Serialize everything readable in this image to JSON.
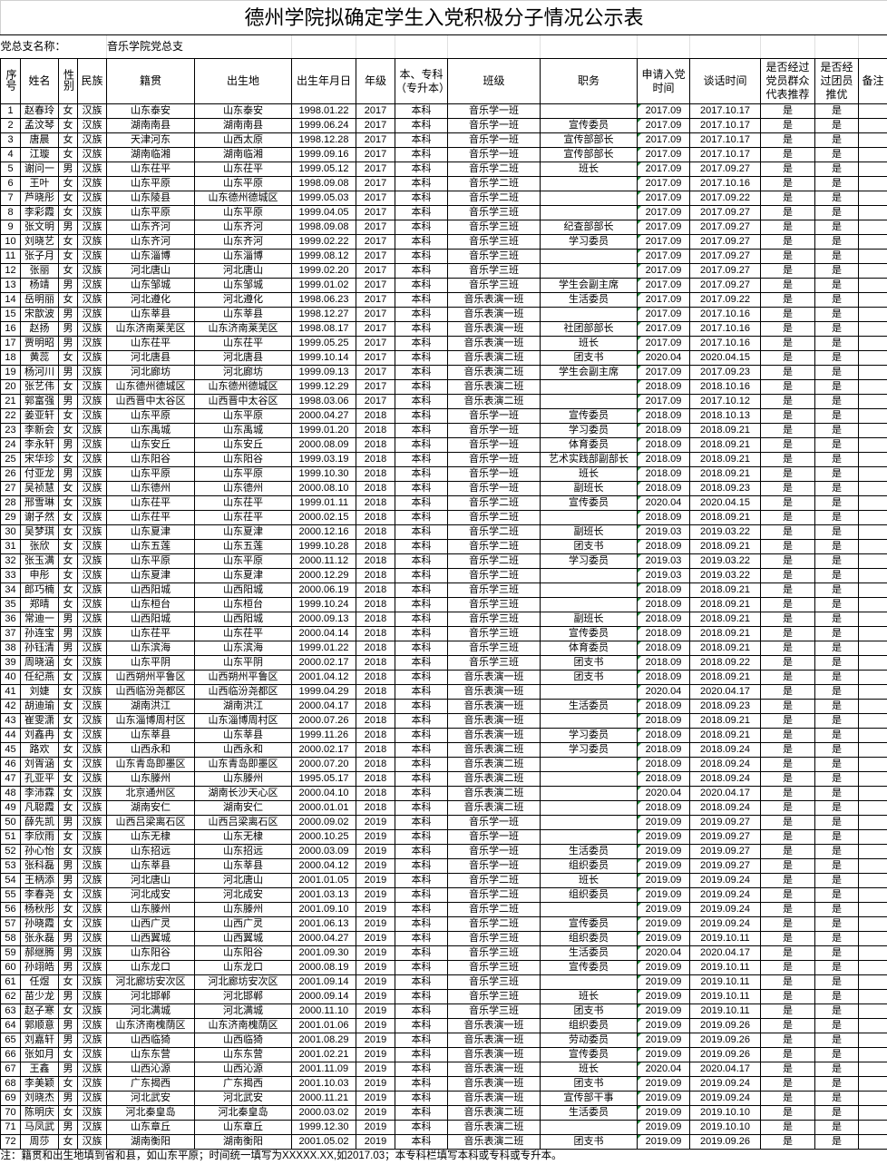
{
  "title": "德州学院拟确定学生入党积极分子情况公示表",
  "branch": {
    "label": "党总支名称：",
    "value": "音乐学院党总支"
  },
  "headers": [
    "序号",
    "姓名",
    "性别",
    "民族",
    "籍贯",
    "出生地",
    "出生年月日",
    "年级",
    "本、专科（专升本）",
    "班级",
    "职务",
    "申请入党时间",
    "谈话时间",
    "是否经过党员群众代表推荐",
    "是否经过团员推优",
    "备注"
  ],
  "rows": [
    [
      "1",
      "赵春玲",
      "女",
      "汉族",
      "山东泰安",
      "山东泰安",
      "1998.01.22",
      "2017",
      "本科",
      "音乐学一班",
      "",
      "2017.09",
      "2017.10.17",
      "是",
      "是",
      ""
    ],
    [
      "2",
      "孟汶琴",
      "女",
      "汉族",
      "湖南南县",
      "湖南南县",
      "1999.06.24",
      "2017",
      "本科",
      "音乐学一班",
      "宣传委员",
      "2017.09",
      "2017.10.17",
      "是",
      "是",
      ""
    ],
    [
      "3",
      "唐晨",
      "女",
      "汉族",
      "天津河东",
      "山西太原",
      "1998.12.28",
      "2017",
      "本科",
      "音乐学一班",
      "宣传部部长",
      "2017.09",
      "2017.10.17",
      "是",
      "是",
      ""
    ],
    [
      "4",
      "江璇",
      "女",
      "汉族",
      "湖南临湘",
      "湖南临湘",
      "1999.09.16",
      "2017",
      "本科",
      "音乐学一班",
      "宣传部部长",
      "2017.09",
      "2017.10.17",
      "是",
      "是",
      ""
    ],
    [
      "5",
      "谢问一",
      "男",
      "汉族",
      "山东茌平",
      "山东茌平",
      "1999.05.12",
      "2017",
      "本科",
      "音乐学二班",
      "班长",
      "2017.09",
      "2017.09.27",
      "是",
      "是",
      ""
    ],
    [
      "6",
      "王叶",
      "女",
      "汉族",
      "山东平原",
      "山东平原",
      "1998.09.08",
      "2017",
      "本科",
      "音乐学二班",
      "",
      "2017.09",
      "2017.10.16",
      "是",
      "是",
      ""
    ],
    [
      "7",
      "芦晓彤",
      "女",
      "汉族",
      "山东陵县",
      "山东德州德城区",
      "1999.05.03",
      "2017",
      "本科",
      "音乐学二班",
      "",
      "2017.09",
      "2017.09.22",
      "是",
      "是",
      ""
    ],
    [
      "8",
      "李彩霞",
      "女",
      "汉族",
      "山东平原",
      "山东平原",
      "1999.04.05",
      "2017",
      "本科",
      "音乐学三班",
      "",
      "2017.09",
      "2017.09.27",
      "是",
      "是",
      ""
    ],
    [
      "9",
      "张文明",
      "男",
      "汉族",
      "山东齐河",
      "山东齐河",
      "1998.09.08",
      "2017",
      "本科",
      "音乐学三班",
      "纪查部部长",
      "2017.09",
      "2017.09.27",
      "是",
      "是",
      ""
    ],
    [
      "10",
      "刘晓艺",
      "女",
      "汉族",
      "山东齐河",
      "山东齐河",
      "1999.02.22",
      "2017",
      "本科",
      "音乐学三班",
      "学习委员",
      "2017.09",
      "2017.09.27",
      "是",
      "是",
      ""
    ],
    [
      "11",
      "张子月",
      "女",
      "汉族",
      "山东淄博",
      "山东淄博",
      "1999.08.12",
      "2017",
      "本科",
      "音乐学三班",
      "",
      "2017.09",
      "2017.09.27",
      "是",
      "是",
      ""
    ],
    [
      "12",
      "张丽",
      "女",
      "汉族",
      "河北唐山",
      "河北唐山",
      "1999.02.20",
      "2017",
      "本科",
      "音乐学三班",
      "",
      "2017.09",
      "2017.09.27",
      "是",
      "是",
      ""
    ],
    [
      "13",
      "杨靖",
      "男",
      "汉族",
      "山东邹城",
      "山东邹城",
      "1999.01.02",
      "2017",
      "本科",
      "音乐学三班",
      "学生会副主席",
      "2017.09",
      "2017.09.27",
      "是",
      "是",
      ""
    ],
    [
      "14",
      "岳明丽",
      "女",
      "汉族",
      "河北遵化",
      "河北遵化",
      "1998.06.23",
      "2017",
      "本科",
      "音乐表演一班",
      "生活委员",
      "2017.09",
      "2017.09.22",
      "是",
      "是",
      ""
    ],
    [
      "15",
      "宋歆波",
      "男",
      "汉族",
      "山东莘县",
      "山东莘县",
      "1998.12.27",
      "2017",
      "本科",
      "音乐表演一班",
      "",
      "2017.09",
      "2017.10.16",
      "是",
      "是",
      ""
    ],
    [
      "16",
      "赵扬",
      "男",
      "汉族",
      "山东济南莱芜区",
      "山东济南莱芜区",
      "1998.08.17",
      "2017",
      "本科",
      "音乐表演一班",
      "社团部部长",
      "2017.09",
      "2017.10.16",
      "是",
      "是",
      ""
    ],
    [
      "17",
      "贾明昭",
      "男",
      "汉族",
      "山东茌平",
      "山东茌平",
      "1999.05.25",
      "2017",
      "本科",
      "音乐表演一班",
      "班长",
      "2017.09",
      "2017.10.16",
      "是",
      "是",
      ""
    ],
    [
      "18",
      "黄蕊",
      "女",
      "汉族",
      "河北唐县",
      "河北唐县",
      "1999.10.14",
      "2017",
      "本科",
      "音乐表演二班",
      "团支书",
      "2020.04",
      "2020.04.15",
      "是",
      "是",
      ""
    ],
    [
      "19",
      "杨河川",
      "男",
      "汉族",
      "河北廊坊",
      "河北廊坊",
      "1999.09.13",
      "2017",
      "本科",
      "音乐表演二班",
      "学生会副主席",
      "2017.09",
      "2017.09.23",
      "是",
      "是",
      ""
    ],
    [
      "20",
      "张艺伟",
      "女",
      "汉族",
      "山东德州德城区",
      "山东德州德城区",
      "1999.12.29",
      "2017",
      "本科",
      "音乐表演二班",
      "",
      "2018.09",
      "2018.10.16",
      "是",
      "是",
      ""
    ],
    [
      "21",
      "郭富强",
      "男",
      "汉族",
      "山西晋中太谷区",
      "山西晋中太谷区",
      "1998.03.06",
      "2017",
      "本科",
      "音乐表演二班",
      "",
      "2017.09",
      "2017.10.12",
      "是",
      "是",
      ""
    ],
    [
      "22",
      "姜亚轩",
      "女",
      "汉族",
      "山东平原",
      "山东平原",
      "2000.04.27",
      "2018",
      "本科",
      "音乐学一班",
      "宣传委员",
      "2018.09",
      "2018.10.13",
      "是",
      "是",
      ""
    ],
    [
      "23",
      "李新会",
      "女",
      "汉族",
      "山东禹城",
      "山东禹城",
      "1999.01.20",
      "2018",
      "本科",
      "音乐学一班",
      "学习委员",
      "2018.09",
      "2018.09.21",
      "是",
      "是",
      ""
    ],
    [
      "24",
      "李永轩",
      "男",
      "汉族",
      "山东安丘",
      "山东安丘",
      "2000.08.09",
      "2018",
      "本科",
      "音乐学一班",
      "体育委员",
      "2018.09",
      "2018.09.21",
      "是",
      "是",
      ""
    ],
    [
      "25",
      "宋华珍",
      "女",
      "汉族",
      "山东阳谷",
      "山东阳谷",
      "1999.03.19",
      "2018",
      "本科",
      "音乐学一班",
      "艺术实践部副部长",
      "2018.09",
      "2018.09.21",
      "是",
      "是",
      ""
    ],
    [
      "26",
      "付亚龙",
      "男",
      "汉族",
      "山东平原",
      "山东平原",
      "1999.10.30",
      "2018",
      "本科",
      "音乐学一班",
      "班长",
      "2018.09",
      "2018.09.21",
      "是",
      "是",
      ""
    ],
    [
      "27",
      "吴祯慧",
      "女",
      "汉族",
      "山东德州",
      "山东德州",
      "2000.08.10",
      "2018",
      "本科",
      "音乐学一班",
      "副班长",
      "2018.09",
      "2018.09.23",
      "是",
      "是",
      ""
    ],
    [
      "28",
      "邢雪琳",
      "女",
      "汉族",
      "山东茌平",
      "山东茌平",
      "1999.01.11",
      "2018",
      "本科",
      "音乐学二班",
      "宣传委员",
      "2020.04",
      "2020.04.15",
      "是",
      "是",
      ""
    ],
    [
      "29",
      "谢子然",
      "女",
      "汉族",
      "山东茌平",
      "山东茌平",
      "2000.02.15",
      "2018",
      "本科",
      "音乐学二班",
      "",
      "2018.09",
      "2018.09.21",
      "是",
      "是",
      ""
    ],
    [
      "30",
      "吴梦琪",
      "女",
      "汉族",
      "山东夏津",
      "山东夏津",
      "2000.12.16",
      "2018",
      "本科",
      "音乐学二班",
      "副班长",
      "2019.03",
      "2019.03.22",
      "是",
      "是",
      ""
    ],
    [
      "31",
      "张欣",
      "女",
      "汉族",
      "山东五莲",
      "山东五莲",
      "1999.10.28",
      "2018",
      "本科",
      "音乐学二班",
      "团支书",
      "2018.09",
      "2018.09.21",
      "是",
      "是",
      ""
    ],
    [
      "32",
      "张玉满",
      "女",
      "汉族",
      "山东平原",
      "山东平原",
      "2000.11.12",
      "2018",
      "本科",
      "音乐学二班",
      "学习委员",
      "2019.03",
      "2019.03.22",
      "是",
      "是",
      ""
    ],
    [
      "33",
      "申彤",
      "女",
      "汉族",
      "山东夏津",
      "山东夏津",
      "2000.12.29",
      "2018",
      "本科",
      "音乐学二班",
      "",
      "2019.03",
      "2019.03.22",
      "是",
      "是",
      ""
    ],
    [
      "34",
      "郎巧楠",
      "女",
      "汉族",
      "山西阳城",
      "山西阳城",
      "2000.06.19",
      "2018",
      "本科",
      "音乐学三班",
      "",
      "2018.09",
      "2018.09.21",
      "是",
      "是",
      ""
    ],
    [
      "35",
      "郑晴",
      "女",
      "汉族",
      "山东桓台",
      "山东桓台",
      "1999.10.24",
      "2018",
      "本科",
      "音乐学三班",
      "",
      "2018.09",
      "2018.09.21",
      "是",
      "是",
      ""
    ],
    [
      "36",
      "常迪一",
      "男",
      "汉族",
      "山西阳城",
      "山西阳城",
      "2000.09.13",
      "2018",
      "本科",
      "音乐学三班",
      "副班长",
      "2018.09",
      "2018.09.21",
      "是",
      "是",
      ""
    ],
    [
      "37",
      "孙连宝",
      "男",
      "汉族",
      "山东茌平",
      "山东茌平",
      "2000.04.14",
      "2018",
      "本科",
      "音乐学三班",
      "宣传委员",
      "2018.09",
      "2018.09.21",
      "是",
      "是",
      ""
    ],
    [
      "38",
      "孙钰清",
      "男",
      "汉族",
      "山东滨海",
      "山东滨海",
      "1999.01.22",
      "2018",
      "本科",
      "音乐学三班",
      "体育委员",
      "2018.09",
      "2018.09.21",
      "是",
      "是",
      ""
    ],
    [
      "39",
      "周晓涵",
      "女",
      "汉族",
      "山东平阴",
      "山东平阴",
      "2000.02.17",
      "2018",
      "本科",
      "音乐学三班",
      "团支书",
      "2018.09",
      "2018.09.22",
      "是",
      "是",
      ""
    ],
    [
      "40",
      "任纪燕",
      "女",
      "汉族",
      "山西朔州平鲁区",
      "山西朔州平鲁区",
      "2001.04.12",
      "2018",
      "本科",
      "音乐表演一班",
      "团支书",
      "2018.09",
      "2018.09.21",
      "是",
      "是",
      ""
    ],
    [
      "41",
      "刘婕",
      "女",
      "汉族",
      "山西临汾尧都区",
      "山西临汾尧都区",
      "1999.04.29",
      "2018",
      "本科",
      "音乐表演一班",
      "",
      "2020.04",
      "2020.04.17",
      "是",
      "是",
      ""
    ],
    [
      "42",
      "胡迪瑜",
      "女",
      "汉族",
      "湖南洪江",
      "湖南洪江",
      "2000.04.17",
      "2018",
      "本科",
      "音乐表演一班",
      "生活委员",
      "2018.09",
      "2018.09.23",
      "是",
      "是",
      ""
    ],
    [
      "43",
      "崔雯潇",
      "女",
      "汉族",
      "山东淄博周村区",
      "山东淄博周村区",
      "2000.07.26",
      "2018",
      "本科",
      "音乐表演一班",
      "",
      "2018.09",
      "2018.09.21",
      "是",
      "是",
      ""
    ],
    [
      "44",
      "刘鑫冉",
      "女",
      "汉族",
      "山东莘县",
      "山东莘县",
      "1999.11.26",
      "2018",
      "本科",
      "音乐表演一班",
      "学习委员",
      "2018.09",
      "2018.09.21",
      "是",
      "是",
      ""
    ],
    [
      "45",
      "路欢",
      "女",
      "汉族",
      "山西永和",
      "山西永和",
      "2000.02.17",
      "2018",
      "本科",
      "音乐表演二班",
      "学习委员",
      "2018.09",
      "2018.09.24",
      "是",
      "是",
      ""
    ],
    [
      "46",
      "刘胥涵",
      "女",
      "汉族",
      "山东青岛即墨区",
      "山东青岛即墨区",
      "2000.07.20",
      "2018",
      "本科",
      "音乐表演二班",
      "",
      "2018.09",
      "2018.09.24",
      "是",
      "是",
      ""
    ],
    [
      "47",
      "孔亚平",
      "女",
      "汉族",
      "山东滕州",
      "山东滕州",
      "1995.05.17",
      "2018",
      "本科",
      "音乐表演二班",
      "",
      "2018.09",
      "2018.09.24",
      "是",
      "是",
      ""
    ],
    [
      "48",
      "李沛霖",
      "女",
      "汉族",
      "北京通州区",
      "湖南长沙天心区",
      "2000.04.10",
      "2018",
      "本科",
      "音乐表演二班",
      "",
      "2020.04",
      "2020.04.17",
      "是",
      "是",
      ""
    ],
    [
      "49",
      "凡聪霞",
      "女",
      "汉族",
      "湖南安仁",
      "湖南安仁",
      "2000.01.01",
      "2018",
      "本科",
      "音乐表演二班",
      "",
      "2018.09",
      "2018.09.24",
      "是",
      "是",
      ""
    ],
    [
      "50",
      "薛先凯",
      "男",
      "汉族",
      "山西吕梁离石区",
      "山西吕梁离石区",
      "2000.09.02",
      "2019",
      "本科",
      "音乐学一班",
      "",
      "2019.09",
      "2019.09.27",
      "是",
      "是",
      ""
    ],
    [
      "51",
      "李欣雨",
      "女",
      "汉族",
      "山东无棣",
      "山东无棣",
      "2000.10.25",
      "2019",
      "本科",
      "音乐学一班",
      "",
      "2019.09",
      "2019.09.27",
      "是",
      "是",
      ""
    ],
    [
      "52",
      "孙心怡",
      "女",
      "汉族",
      "山东招远",
      "山东招远",
      "2000.03.09",
      "2019",
      "本科",
      "音乐学一班",
      "生活委员",
      "2019.09",
      "2019.09.27",
      "是",
      "是",
      ""
    ],
    [
      "53",
      "张科磊",
      "男",
      "汉族",
      "山东莘县",
      "山东莘县",
      "2000.04.12",
      "2019",
      "本科",
      "音乐学一班",
      "组织委员",
      "2019.09",
      "2019.09.27",
      "是",
      "是",
      ""
    ],
    [
      "54",
      "王柄添",
      "男",
      "汉族",
      "河北唐山",
      "河北唐山",
      "2001.01.05",
      "2019",
      "本科",
      "音乐学二班",
      "班长",
      "2019.09",
      "2019.09.24",
      "是",
      "是",
      ""
    ],
    [
      "55",
      "李春尧",
      "女",
      "汉族",
      "河北成安",
      "河北成安",
      "2001.03.13",
      "2019",
      "本科",
      "音乐学二班",
      "组织委员",
      "2019.09",
      "2019.09.24",
      "是",
      "是",
      ""
    ],
    [
      "56",
      "杨秋彤",
      "女",
      "汉族",
      "山东滕州",
      "山东滕州",
      "2001.09.10",
      "2019",
      "本科",
      "音乐学二班",
      "",
      "2019.09",
      "2019.09.24",
      "是",
      "是",
      ""
    ],
    [
      "57",
      "孙晓霞",
      "女",
      "汉族",
      "山西广灵",
      "山西广灵",
      "2001.06.13",
      "2019",
      "本科",
      "音乐学二班",
      "宣传委员",
      "2019.09",
      "2019.09.24",
      "是",
      "是",
      ""
    ],
    [
      "58",
      "张永磊",
      "男",
      "汉族",
      "山西翼城",
      "山西翼城",
      "2000.04.27",
      "2019",
      "本科",
      "音乐学三班",
      "组织委员",
      "2019.09",
      "2019.10.11",
      "是",
      "是",
      ""
    ],
    [
      "59",
      "郝继腾",
      "男",
      "汉族",
      "山东阳谷",
      "山东阳谷",
      "2001.09.30",
      "2019",
      "本科",
      "音乐学三班",
      "生活委员",
      "2020.04",
      "2020.04.17",
      "是",
      "是",
      ""
    ],
    [
      "60",
      "孙翊皓",
      "男",
      "汉族",
      "山东龙口",
      "山东龙口",
      "2000.08.19",
      "2019",
      "本科",
      "音乐学三班",
      "宣传委员",
      "2019.09",
      "2019.10.11",
      "是",
      "是",
      ""
    ],
    [
      "61",
      "任煜",
      "女",
      "汉族",
      "河北廊坊安次区",
      "河北廊坊安次区",
      "2001.09.14",
      "2019",
      "本科",
      "音乐学三班",
      "",
      "2019.09",
      "2019.10.11",
      "是",
      "是",
      ""
    ],
    [
      "62",
      "苗少龙",
      "男",
      "汉族",
      "河北邯郸",
      "河北邯郸",
      "2000.09.14",
      "2019",
      "本科",
      "音乐学三班",
      "班长",
      "2019.09",
      "2019.10.11",
      "是",
      "是",
      ""
    ],
    [
      "63",
      "赵子寒",
      "女",
      "汉族",
      "河北满城",
      "河北满城",
      "2000.11.10",
      "2019",
      "本科",
      "音乐学三班",
      "团支书",
      "2019.09",
      "2019.10.11",
      "是",
      "是",
      ""
    ],
    [
      "64",
      "郭顺意",
      "男",
      "汉族",
      "山东济南槐荫区",
      "山东济南槐荫区",
      "2001.01.06",
      "2019",
      "本科",
      "音乐表演一班",
      "组织委员",
      "2019.09",
      "2019.09.26",
      "是",
      "是",
      ""
    ],
    [
      "65",
      "刘嘉轩",
      "男",
      "汉族",
      "山西临猗",
      "山西临猗",
      "2001.08.29",
      "2019",
      "本科",
      "音乐表演一班",
      "劳动委员",
      "2019.09",
      "2019.09.26",
      "是",
      "是",
      ""
    ],
    [
      "66",
      "张如月",
      "女",
      "汉族",
      "山东东营",
      "山东东营",
      "2001.02.21",
      "2019",
      "本科",
      "音乐表演一班",
      "宣传委员",
      "2019.09",
      "2019.09.26",
      "是",
      "是",
      ""
    ],
    [
      "67",
      "王鑫",
      "男",
      "汉族",
      "山西沁源",
      "山西沁源",
      "2001.11.09",
      "2019",
      "本科",
      "音乐表演一班",
      "班长",
      "2020.04",
      "2020.04.17",
      "是",
      "是",
      ""
    ],
    [
      "68",
      "李美颖",
      "女",
      "汉族",
      "广东揭西",
      "广东揭西",
      "2001.10.03",
      "2019",
      "本科",
      "音乐表演一班",
      "团支书",
      "2019.09",
      "2019.09.24",
      "是",
      "是",
      ""
    ],
    [
      "69",
      "刘晓杰",
      "男",
      "汉族",
      "河北武安",
      "河北武安",
      "2000.11.21",
      "2019",
      "本科",
      "音乐表演一班",
      "宣传部干事",
      "2019.09",
      "2019.09.24",
      "是",
      "是",
      ""
    ],
    [
      "70",
      "陈明庆",
      "女",
      "汉族",
      "河北秦皇岛",
      "河北秦皇岛",
      "2000.03.02",
      "2019",
      "本科",
      "音乐表演二班",
      "生活委员",
      "2019.09",
      "2019.10.10",
      "是",
      "是",
      ""
    ],
    [
      "71",
      "马凤武",
      "男",
      "汉族",
      "山东章丘",
      "山东章丘",
      "1999.12.30",
      "2019",
      "本科",
      "音乐表演二班",
      "",
      "2019.09",
      "2019.10.10",
      "是",
      "是",
      ""
    ],
    [
      "72",
      "周莎",
      "女",
      "汉族",
      "湖南衡阳",
      "湖南衡阳",
      "2001.05.02",
      "2019",
      "本科",
      "音乐表演二班",
      "团支书",
      "2019.09",
      "2019.09.26",
      "是",
      "是",
      ""
    ]
  ],
  "footnote": "注：籍贯和出生地填到省和县，如山东平原；时间统一填写为XXXXX.XX,如2017.03；本专科栏填写本科或专科或专升本。",
  "colors": {
    "cell_marker": "#1e8a3a",
    "border": "#000000"
  }
}
